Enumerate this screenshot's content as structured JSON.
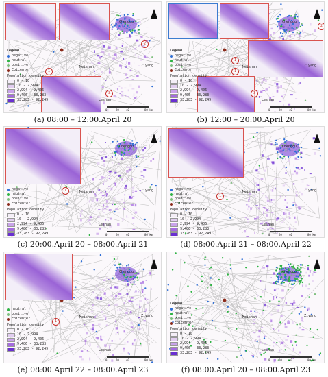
{
  "captions": [
    "(a) 08:00 – 12:00.April 20",
    "(b) 12:00 – 20:00.April 20",
    "(c) 20:00.April 20 – 08:00.April 21",
    "(d) 08:00.April 21 – 08:00.April 22",
    "(e) 08:00.April 22 – 08:00.April 23",
    "(f) 08:00.April 20 – 08:00.April 23"
  ],
  "legend": {
    "title": "Legend",
    "items": [
      "negative",
      "neutral",
      "positive",
      "Epicenter"
    ],
    "density_title": "Population density",
    "density_ranges": [
      "0 - 10",
      "10 - 2,994",
      "2,994 - 9,406",
      "9,406 - 33,283",
      "33,283 - 92,249"
    ]
  },
  "places": {
    "chengdu": "Chengdu",
    "meishan": "Meishan",
    "ziyang": "Ziyang",
    "leshan": "Leshan"
  },
  "scale": {
    "zero": "0",
    "mid": "20",
    "end": "40",
    "unit": "80 km"
  },
  "markers": [
    "1",
    "2",
    "3"
  ],
  "colors": {
    "negative": "#2f6fd6",
    "neutral": "#2fb344",
    "positive": "#7fbf7f",
    "epicenter": "#8b2a1a",
    "density": [
      "#f4eef7",
      "#e1cdf0",
      "#c9a3ea",
      "#a56be0",
      "#6a2fd1"
    ]
  }
}
